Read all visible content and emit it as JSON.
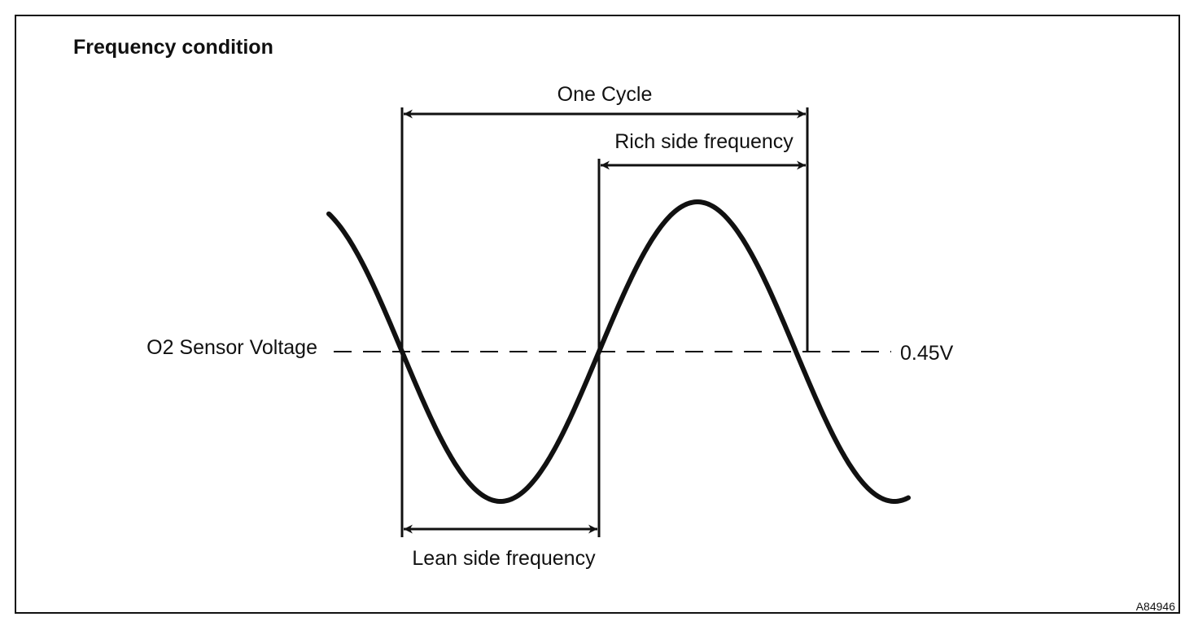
{
  "diagram": {
    "title": "Frequency condition",
    "labels": {
      "one_cycle": "One Cycle",
      "rich_side": "Rich side frequency",
      "lean_side": "Lean side frequency",
      "sensor_voltage": "O2 Sensor Voltage",
      "threshold": "0.45V"
    },
    "figure_code": "A84946"
  }
}
